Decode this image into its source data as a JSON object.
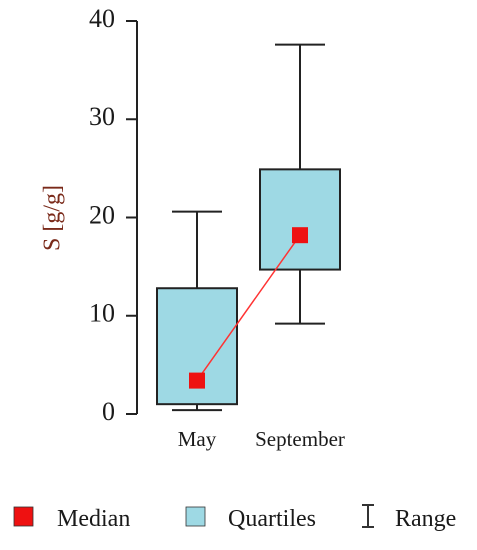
{
  "chart_data": {
    "type": "box",
    "categories": [
      "May",
      "September"
    ],
    "boxes": [
      {
        "category": "May",
        "min": 0.4,
        "q1": 1.0,
        "median": 3.4,
        "q3": 12.8,
        "max": 20.6
      },
      {
        "category": "September",
        "min": 9.2,
        "q1": 14.7,
        "median": 18.2,
        "q3": 24.9,
        "max": 37.6
      }
    ],
    "median_line": true,
    "ylabel": "S [g/g]",
    "xlabel": "",
    "ylim": [
      0,
      40
    ],
    "yticks": [
      0,
      10,
      20,
      30,
      40
    ],
    "grid": false,
    "legend_position": "bottom",
    "legend": {
      "median": "Median",
      "quartiles": "Quartiles",
      "range": "Range"
    },
    "colors": {
      "box_fill": "#9ed9e4",
      "median_marker": "#ee1111",
      "median_line": "#ff3333",
      "axis": "#222222",
      "ylabel": "#7a2a1a"
    }
  }
}
